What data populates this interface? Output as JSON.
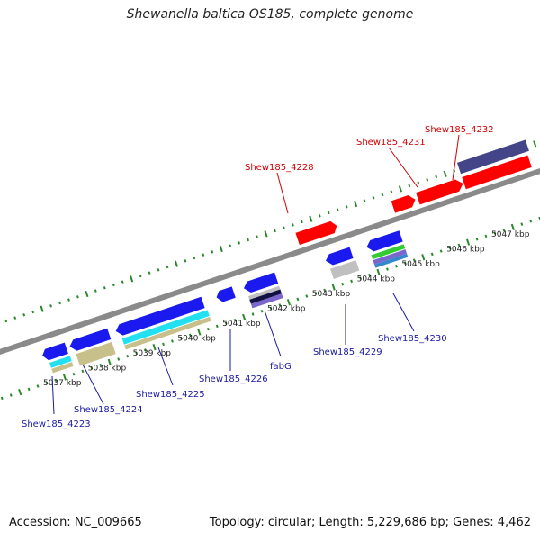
{
  "title": "Shewanella baltica OS185, complete genome",
  "footer": {
    "accession": "Accession: NC_009665",
    "topology": "Topology: circular; Length: 5,229,686 bp; Genes: 4,462"
  },
  "scale_labels": [
    "5037 kbp",
    "5038 kbp",
    "5039 kbp",
    "5040 kbp",
    "5041 kbp",
    "5042 kbp",
    "5043 kbp",
    "5044 kbp",
    "5045 kbp",
    "5046 kbp",
    "5047 kbp"
  ],
  "gene_labels_forward": [
    "Shew185_4228",
    "Shew185_4231",
    "Shew185_4232"
  ],
  "gene_labels_reverse": [
    "Shew185_4223",
    "Shew185_4224",
    "Shew185_4225",
    "Shew185_4226",
    "fabG",
    "Shew185_4229",
    "Shew185_4230"
  ],
  "colors": {
    "forward_gene": "#ff0000",
    "reverse_gene": "#1a1aee",
    "backbone": "#8a8a8a",
    "tick": "#2a8a2a",
    "forward_label": "#d00000",
    "reverse_label": "#1a1aa0",
    "feature_khaki": "#c8c08a",
    "feature_cyan": "#22e0f0",
    "feature_navy": "#444488",
    "feature_green": "#33cc33",
    "feature_gray": "#c0c0c0"
  }
}
